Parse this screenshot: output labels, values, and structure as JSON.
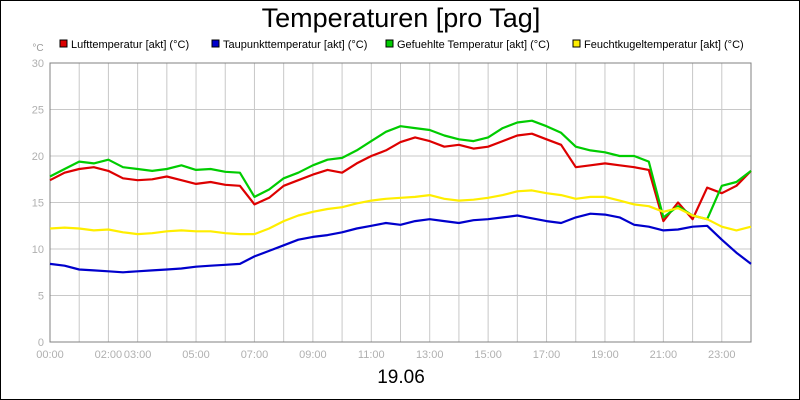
{
  "chart_data": {
    "type": "line",
    "title": "Temperaturen [pro Tag]",
    "xlabel": "19.06",
    "ylabel": "°C",
    "ylim": [
      0,
      30
    ],
    "xlim": [
      0,
      24
    ],
    "yticks": [
      0,
      5,
      10,
      15,
      20,
      25,
      30
    ],
    "xtick_labels": [
      {
        "t": 0,
        "label": "00:00"
      },
      {
        "t": 2,
        "label": "02:00"
      },
      {
        "t": 3,
        "label": "03:00"
      },
      {
        "t": 5,
        "label": "05:00"
      },
      {
        "t": 7,
        "label": "07:00"
      },
      {
        "t": 9,
        "label": "09:00"
      },
      {
        "t": 11,
        "label": "11:00"
      },
      {
        "t": 13,
        "label": "13:00"
      },
      {
        "t": 15,
        "label": "15:00"
      },
      {
        "t": 17,
        "label": "17:00"
      },
      {
        "t": 19,
        "label": "19:00"
      },
      {
        "t": 21,
        "label": "21:00"
      },
      {
        "t": 23,
        "label": "23:00"
      }
    ],
    "grid": true,
    "legend_position": "top",
    "x": [
      0,
      0.5,
      1,
      1.5,
      2,
      2.5,
      3,
      3.5,
      4,
      4.5,
      5,
      5.5,
      6,
      6.5,
      7,
      7.5,
      8,
      8.5,
      9,
      9.5,
      10,
      10.5,
      11,
      11.5,
      12,
      12.5,
      13,
      13.5,
      14,
      14.5,
      15,
      15.5,
      16,
      16.5,
      17,
      17.5,
      18,
      18.5,
      19,
      19.5,
      20,
      20.5,
      21,
      21.5,
      22,
      22.5,
      23,
      23.5,
      24
    ],
    "series": [
      {
        "name": "Lufttemperatur [akt] (°C)",
        "color": "#dd0000",
        "values": [
          17.4,
          18.2,
          18.6,
          18.8,
          18.4,
          17.6,
          17.4,
          17.5,
          17.8,
          17.4,
          17.0,
          17.2,
          16.9,
          16.8,
          14.8,
          15.5,
          16.8,
          17.4,
          18.0,
          18.5,
          18.2,
          19.2,
          20.0,
          20.6,
          21.5,
          22.0,
          21.6,
          21.0,
          21.2,
          20.8,
          21.0,
          21.6,
          22.2,
          22.4,
          21.8,
          21.2,
          18.8,
          19.0,
          19.2,
          19.0,
          18.8,
          18.5,
          13.0,
          15.0,
          13.2,
          16.6,
          16.0,
          16.8,
          18.4
        ]
      },
      {
        "name": "Taupunkttemperatur [akt] (°C)",
        "color": "#0000cc",
        "values": [
          8.4,
          8.2,
          7.8,
          7.7,
          7.6,
          7.5,
          7.6,
          7.7,
          7.8,
          7.9,
          8.1,
          8.2,
          8.3,
          8.4,
          9.2,
          9.8,
          10.4,
          11.0,
          11.3,
          11.5,
          11.8,
          12.2,
          12.5,
          12.8,
          12.6,
          13.0,
          13.2,
          13.0,
          12.8,
          13.1,
          13.2,
          13.4,
          13.6,
          13.3,
          13.0,
          12.8,
          13.4,
          13.8,
          13.7,
          13.4,
          12.6,
          12.4,
          12.0,
          12.1,
          12.4,
          12.5,
          11.0,
          9.6,
          8.4
        ]
      },
      {
        "name": "Gefuehlte Temperatur [akt] (°C)",
        "color": "#00cc00",
        "values": [
          17.8,
          18.6,
          19.4,
          19.2,
          19.6,
          18.8,
          18.6,
          18.4,
          18.6,
          19.0,
          18.5,
          18.6,
          18.3,
          18.2,
          15.6,
          16.4,
          17.6,
          18.2,
          19.0,
          19.6,
          19.8,
          20.6,
          21.6,
          22.6,
          23.2,
          23.0,
          22.8,
          22.2,
          21.8,
          21.6,
          22.0,
          23.0,
          23.6,
          23.8,
          23.2,
          22.5,
          21.0,
          20.6,
          20.4,
          20.0,
          20.0,
          19.4,
          13.4,
          14.6,
          13.6,
          13.2,
          16.8,
          17.2,
          18.4
        ]
      },
      {
        "name": "Feuchtkugeltemperatur [akt] (°C)",
        "color": "#ffee00",
        "values": [
          12.2,
          12.3,
          12.2,
          12.0,
          12.1,
          11.8,
          11.6,
          11.7,
          11.9,
          12.0,
          11.9,
          11.9,
          11.7,
          11.6,
          11.6,
          12.2,
          13.0,
          13.6,
          14.0,
          14.3,
          14.5,
          14.9,
          15.2,
          15.4,
          15.5,
          15.6,
          15.8,
          15.4,
          15.2,
          15.3,
          15.5,
          15.8,
          16.2,
          16.3,
          16.0,
          15.8,
          15.4,
          15.6,
          15.6,
          15.2,
          14.8,
          14.6,
          14.0,
          14.4,
          13.6,
          13.2,
          12.4,
          12.0,
          12.4
        ]
      }
    ]
  }
}
